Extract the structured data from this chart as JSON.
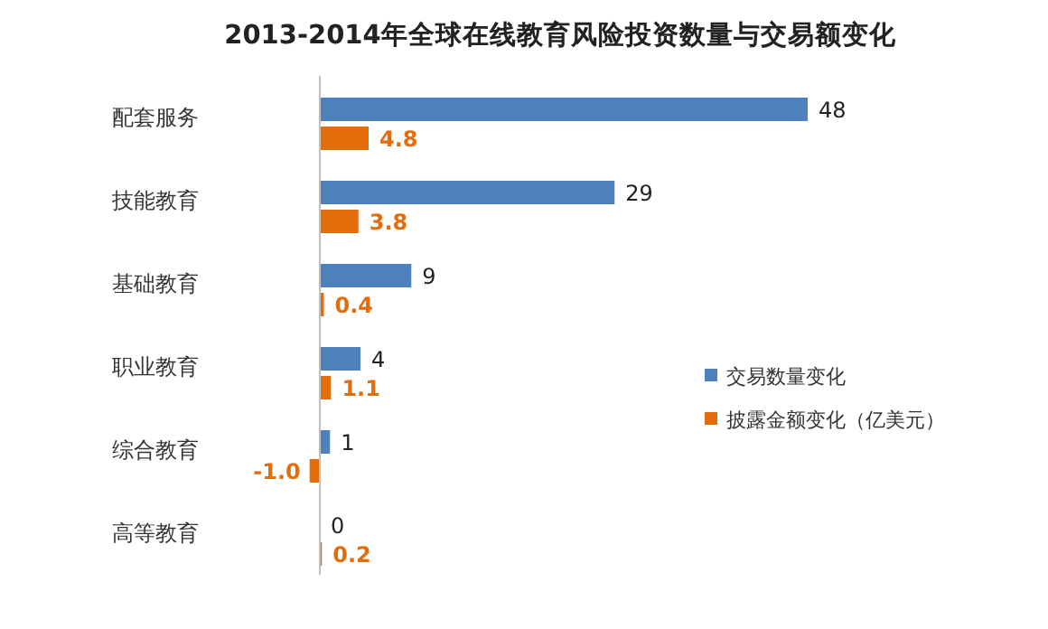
{
  "chart_data": {
    "type": "bar",
    "orientation": "horizontal",
    "title": "2013-2014年全球在线教育风险投资数量与交易额变化",
    "categories": [
      "配套服务",
      "技能教育",
      "基础教育",
      "职业教育",
      "综合教育",
      "高等教育"
    ],
    "series": [
      {
        "name": "交易数量变化",
        "color": "#4f81bd",
        "values": [
          48,
          29,
          9,
          4,
          1,
          0
        ],
        "value_labels": [
          "48",
          "29",
          "9",
          "4",
          "1",
          "0"
        ]
      },
      {
        "name": "披露金额变化（亿美元）",
        "color": "#e46c0a",
        "values": [
          4.8,
          3.8,
          0.4,
          1.1,
          -1.0,
          0.2
        ],
        "value_labels": [
          "4.8",
          "3.8",
          "0.4",
          "1.1",
          "-1.0",
          "0.2"
        ]
      }
    ],
    "legend": "right"
  }
}
